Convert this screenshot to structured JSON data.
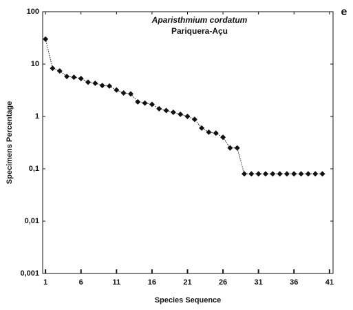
{
  "chart_data": {
    "type": "line",
    "title": "Aparisthmium cordatum",
    "subtitle": "Pariquera-Açu",
    "panel_label": "e",
    "x_label": "Species Sequence",
    "y_label": "Specimens Percentage",
    "x": [
      1,
      2,
      3,
      4,
      5,
      6,
      7,
      8,
      9,
      10,
      11,
      12,
      13,
      14,
      15,
      16,
      17,
      18,
      19,
      20,
      21,
      22,
      23,
      24,
      25,
      26,
      27,
      28,
      29,
      30,
      31,
      32,
      33,
      34,
      35,
      36,
      37,
      38,
      39,
      40
    ],
    "series": [
      {
        "color": "#111111",
        "values": [
          30,
          8.3,
          7.4,
          5.8,
          5.6,
          5.3,
          4.5,
          4.3,
          3.9,
          3.8,
          3.2,
          2.8,
          2.7,
          1.9,
          1.8,
          1.7,
          1.4,
          1.3,
          1.2,
          1.1,
          1.0,
          0.88,
          0.6,
          0.5,
          0.48,
          0.4,
          0.25,
          0.25,
          0.08,
          0.08,
          0.08,
          0.08,
          0.08,
          0.08,
          0.08,
          0.08,
          0.08,
          0.08,
          0.08,
          0.08
        ]
      }
    ],
    "xlim": [
      0.6,
      41.5
    ],
    "xticks": [
      1,
      6,
      11,
      16,
      21,
      26,
      31,
      36,
      41
    ],
    "ylim": [
      0.001,
      100
    ],
    "yticks": [
      {
        "value": 0.001,
        "label": "0,001"
      },
      {
        "value": 0.01,
        "label": "0,01"
      },
      {
        "value": 0.1,
        "label": "0,1"
      },
      1,
      10,
      100
    ],
    "log_y": true,
    "grid": false
  }
}
